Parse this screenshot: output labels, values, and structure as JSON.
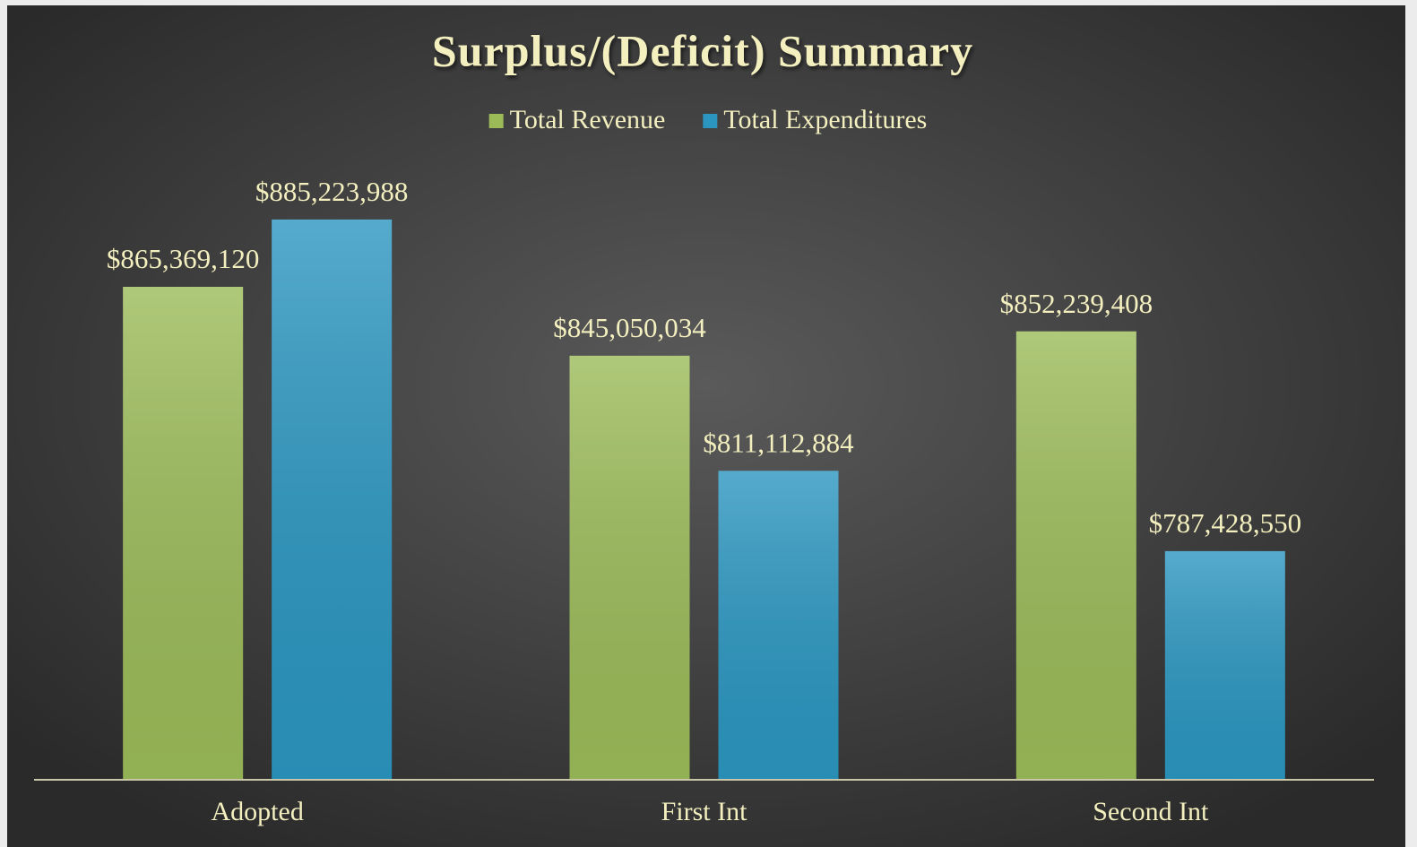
{
  "chart_data": {
    "type": "bar",
    "title": "Surplus/(Deficit) Summary",
    "categories": [
      "Adopted",
      "First Int",
      "Second Int"
    ],
    "series": [
      {
        "name": "Total Revenue",
        "color": "#9bbb59",
        "values": [
          865369120,
          845050034,
          852239408
        ],
        "value_labels": [
          "$865,369,120",
          "$845,050,034",
          "$852,239,408"
        ]
      },
      {
        "name": "Total Expenditures",
        "color": "#2b96c0",
        "values": [
          885223988,
          811112884,
          787428550
        ],
        "value_labels": [
          "$885,223,988",
          "$811,112,884",
          "$787,428,550"
        ]
      }
    ],
    "ylim": [
      720000000,
      900000000
    ],
    "legend": "top"
  }
}
